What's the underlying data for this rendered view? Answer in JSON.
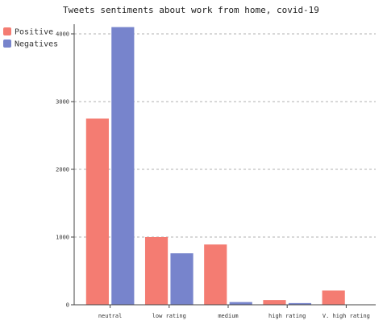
{
  "chart_data": {
    "type": "bar",
    "title": "Tweets sentiments about work from home, covid-19",
    "xlabel": "",
    "ylabel": "",
    "ylim": [
      0,
      4000
    ],
    "yticks": [
      0,
      1000,
      2000,
      3000,
      4000
    ],
    "grid": true,
    "legend_position": "top-left",
    "categories": [
      "neutral",
      "low rating",
      "medium",
      "high rating",
      "V. high rating"
    ],
    "series": [
      {
        "name": "Positive",
        "color": "#f47c72",
        "values": [
          2750,
          1000,
          890,
          70,
          210
        ]
      },
      {
        "name": "Negatives",
        "color": "#7784cc",
        "values": [
          4100,
          760,
          40,
          25,
          0
        ]
      }
    ]
  }
}
